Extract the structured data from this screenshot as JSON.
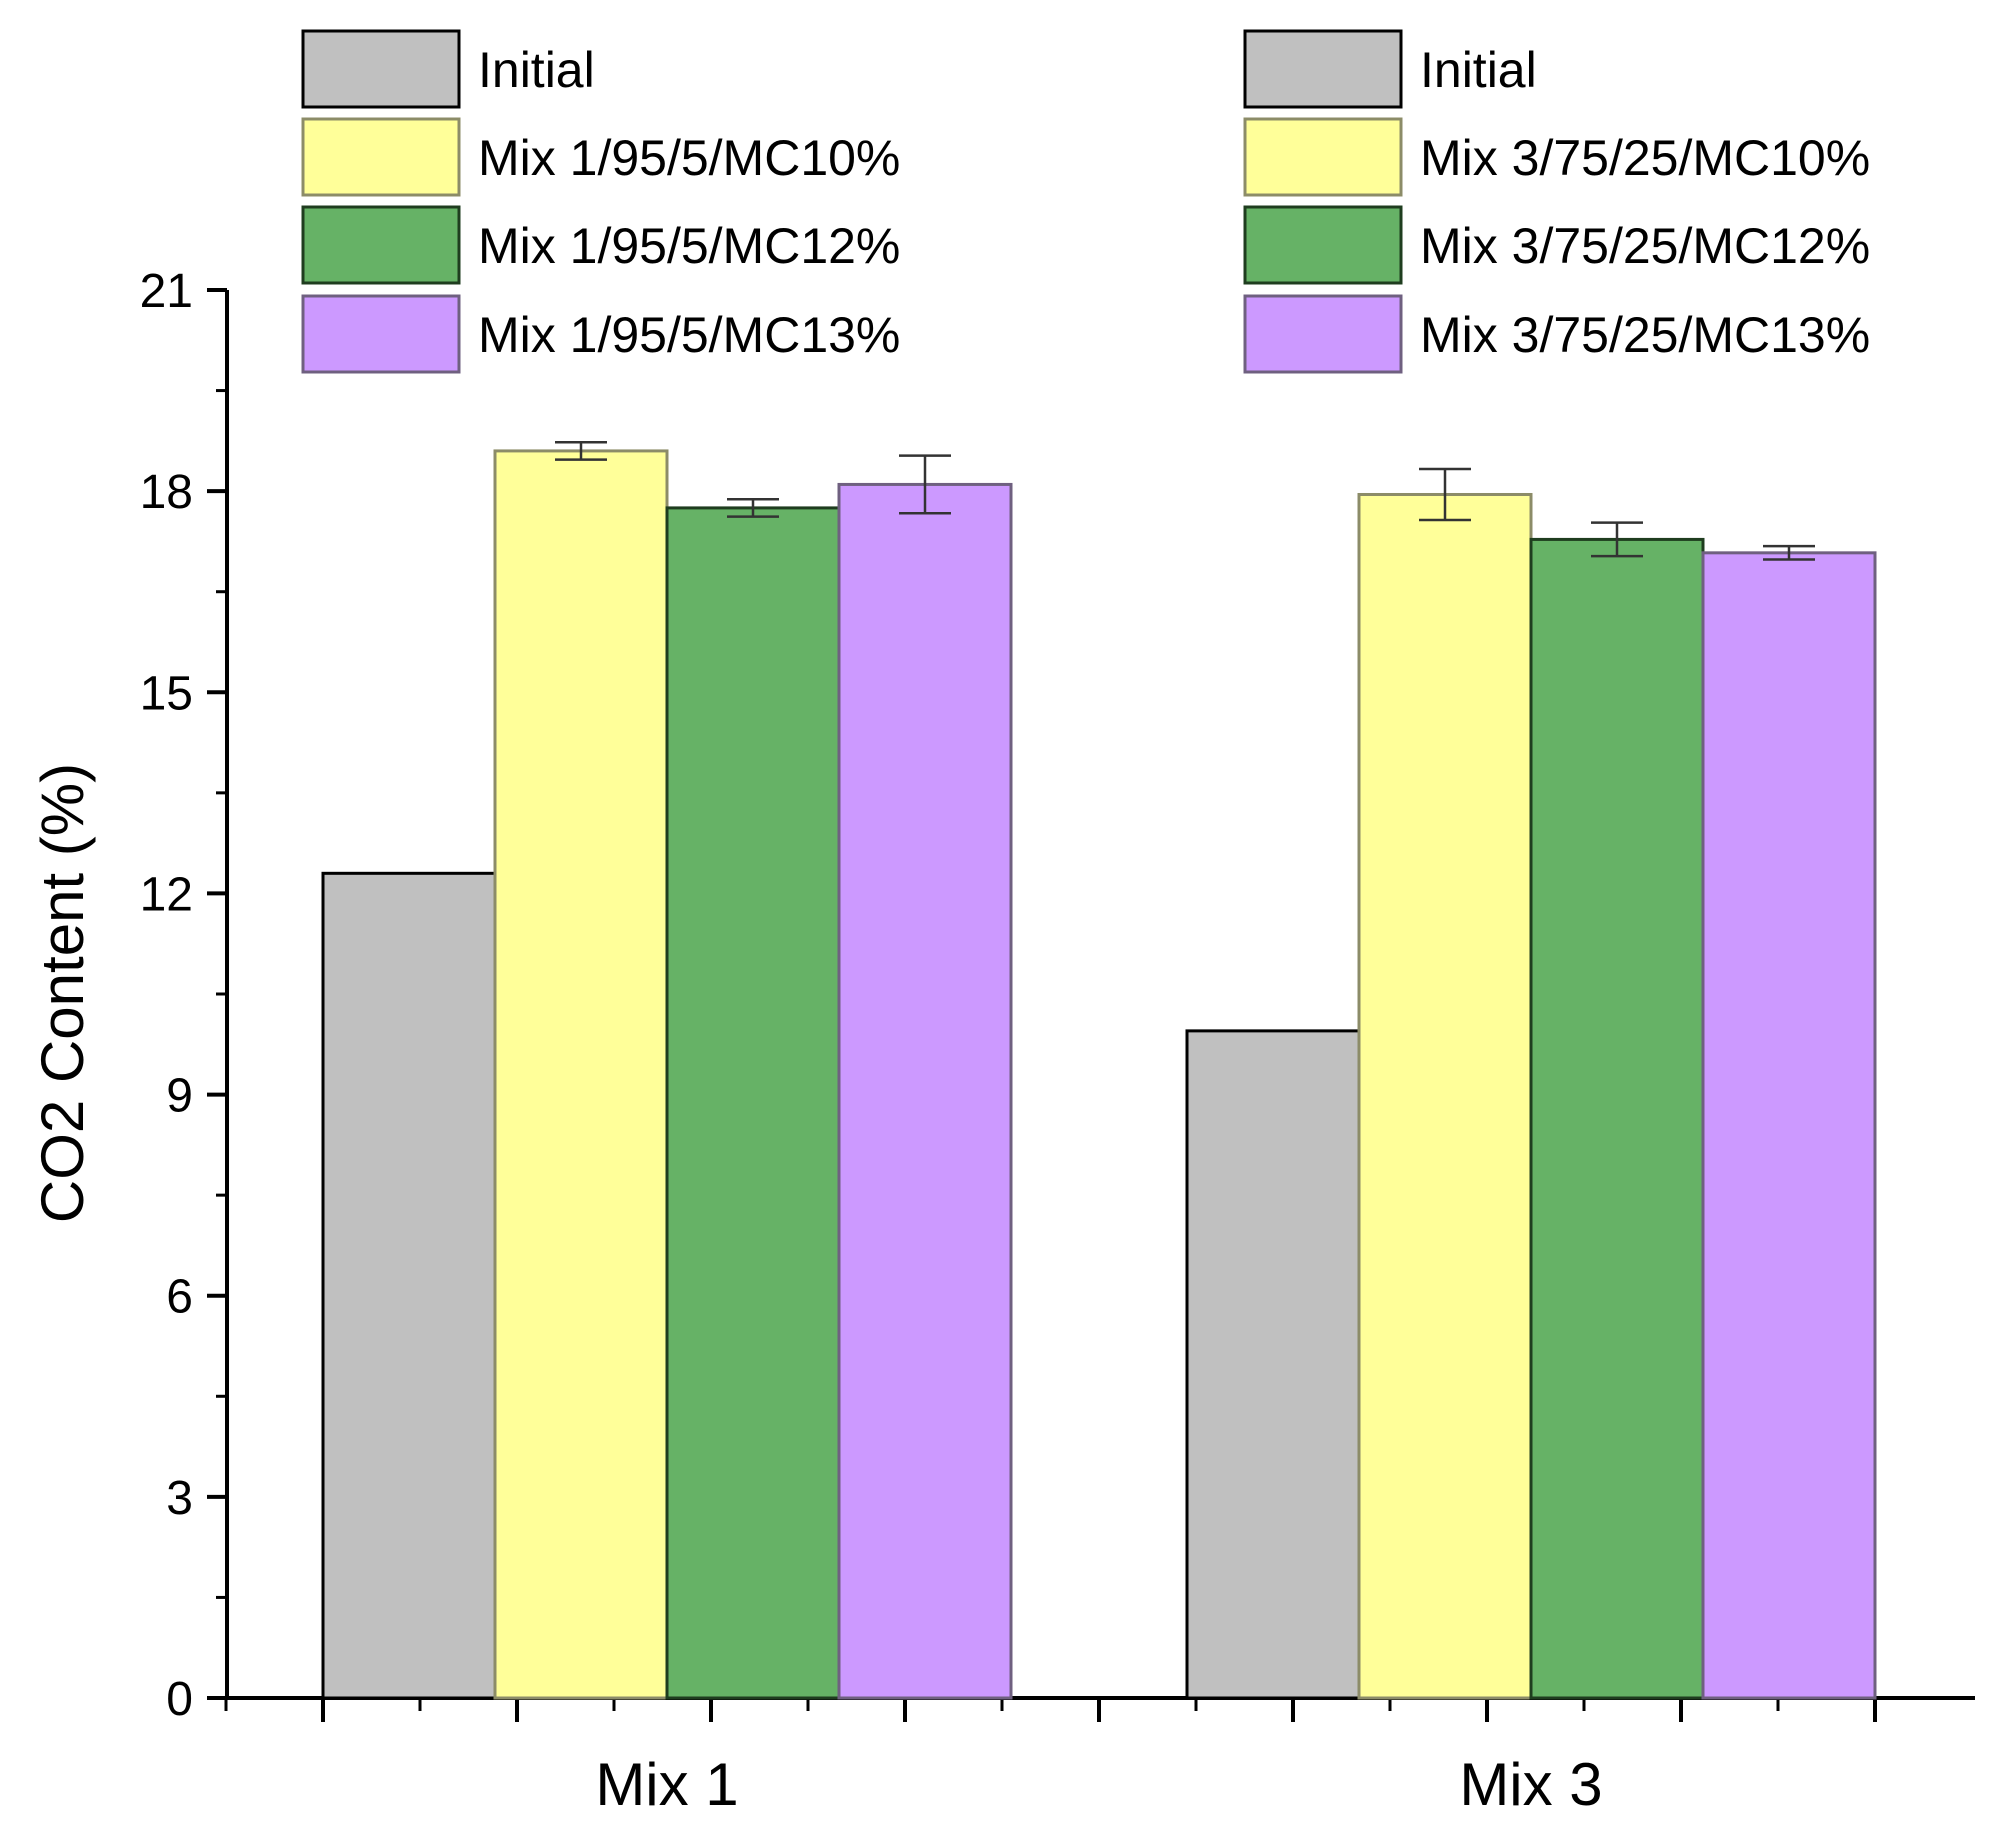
{
  "chart_data": {
    "type": "bar",
    "title": "",
    "xlabel": "",
    "ylabel": "CO2 Content (%)",
    "ylim": [
      0,
      21
    ],
    "yticks": [
      "0",
      "3",
      "6",
      "9",
      "12",
      "15",
      "18",
      "21"
    ],
    "grid": false,
    "categories": [
      "Mix 1",
      "Mix 3"
    ],
    "series": [
      {
        "key": "initial",
        "fill": "#c0c0c0",
        "stroke": "#000000",
        "legend": [
          "Initial",
          "Initial"
        ],
        "values": [
          12.3,
          9.95
        ],
        "errors": [
          null,
          null
        ]
      },
      {
        "key": "mc10",
        "fill": "#ffff99",
        "stroke": "#8c8c68",
        "legend": [
          "Mix 1/95/5/MC10%",
          "Mix 3/75/25/MC10%"
        ],
        "values": [
          18.6,
          17.95
        ],
        "errors": [
          0.13,
          0.38
        ]
      },
      {
        "key": "mc12",
        "fill": "#66b266",
        "stroke": "#1f3d1f",
        "legend": [
          "Mix 1/95/5/MC12%",
          "Mix 3/75/25/MC12%"
        ],
        "values": [
          17.75,
          17.28
        ],
        "errors": [
          0.13,
          0.25
        ]
      },
      {
        "key": "mc13",
        "fill": "#cc99ff",
        "stroke": "#6f6080",
        "legend": [
          "Mix 1/95/5/MC13%",
          "Mix 3/75/25/MC13%"
        ],
        "values": [
          18.1,
          17.08
        ],
        "errors": [
          0.43,
          0.1
        ]
      }
    ],
    "legend_position": "top, two columns (one per group)"
  }
}
